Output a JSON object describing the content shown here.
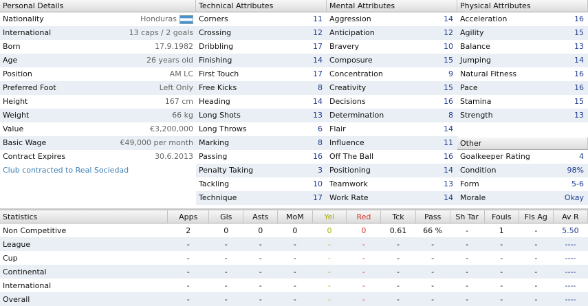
{
  "personal": {
    "title": "Personal Details",
    "rows": [
      {
        "label": "Nationality",
        "value": "Honduras"
      },
      {
        "label": "International",
        "value": "13 caps / 2 goals"
      },
      {
        "label": "Born",
        "value": "17.9.1982"
      },
      {
        "label": "Age",
        "value": "26 years old"
      },
      {
        "label": "Position",
        "value": "AM LC"
      },
      {
        "label": "Preferred Foot",
        "value": "Left Only"
      },
      {
        "label": "Height",
        "value": "167 cm"
      },
      {
        "label": "Weight",
        "value": "66 kg"
      },
      {
        "label": "Value",
        "value": "€3,200,000"
      },
      {
        "label": "Basic Wage",
        "value": "€49,000 per month"
      },
      {
        "label": "Contract Expires",
        "value": "30.6.2013"
      }
    ],
    "club_link": "Club contracted to Real Sociedad"
  },
  "technical": {
    "title": "Technical Attributes",
    "rows": [
      {
        "label": "Corners",
        "value": "11"
      },
      {
        "label": "Crossing",
        "value": "12"
      },
      {
        "label": "Dribbling",
        "value": "17"
      },
      {
        "label": "Finishing",
        "value": "14"
      },
      {
        "label": "First Touch",
        "value": "17"
      },
      {
        "label": "Free Kicks",
        "value": "8"
      },
      {
        "label": "Heading",
        "value": "14"
      },
      {
        "label": "Long Shots",
        "value": "13"
      },
      {
        "label": "Long Throws",
        "value": "6"
      },
      {
        "label": "Marking",
        "value": "8"
      },
      {
        "label": "Passing",
        "value": "16"
      },
      {
        "label": "Penalty Taking",
        "value": "3"
      },
      {
        "label": "Tackling",
        "value": "10"
      },
      {
        "label": "Technique",
        "value": "17"
      }
    ]
  },
  "mental": {
    "title": "Mental Attributes",
    "rows": [
      {
        "label": "Aggression",
        "value": "14"
      },
      {
        "label": "Anticipation",
        "value": "12"
      },
      {
        "label": "Bravery",
        "value": "10"
      },
      {
        "label": "Composure",
        "value": "15"
      },
      {
        "label": "Concentration",
        "value": "9"
      },
      {
        "label": "Creativity",
        "value": "15"
      },
      {
        "label": "Decisions",
        "value": "16"
      },
      {
        "label": "Determination",
        "value": "8"
      },
      {
        "label": "Flair",
        "value": "14"
      },
      {
        "label": "Influence",
        "value": "11"
      },
      {
        "label": "Off The Ball",
        "value": "16"
      },
      {
        "label": "Positioning",
        "value": "14"
      },
      {
        "label": "Teamwork",
        "value": "13"
      },
      {
        "label": "Work Rate",
        "value": "14"
      }
    ]
  },
  "physical": {
    "title": "Physical Attributes",
    "rows": [
      {
        "label": "Acceleration",
        "value": "16"
      },
      {
        "label": "Agility",
        "value": "15"
      },
      {
        "label": "Balance",
        "value": "13"
      },
      {
        "label": "Jumping",
        "value": "14"
      },
      {
        "label": "Natural Fitness",
        "value": "16"
      },
      {
        "label": "Pace",
        "value": "16"
      },
      {
        "label": "Stamina",
        "value": "15"
      },
      {
        "label": "Strength",
        "value": "13"
      }
    ]
  },
  "other": {
    "title": "Other",
    "rows": [
      {
        "label": "Goalkeeper Rating",
        "value": "4"
      },
      {
        "label": "Condition",
        "value": "98%"
      },
      {
        "label": "Form",
        "value": "5-6"
      },
      {
        "label": "Morale",
        "value": "Okay"
      }
    ]
  },
  "statistics": {
    "columns": [
      "Statistics",
      "Apps",
      "Gls",
      "Asts",
      "MoM",
      "Yel",
      "Red",
      "Tck",
      "Pass",
      "Sh Tar",
      "Fouls",
      "Fls Ag",
      "Av R"
    ],
    "rows": [
      [
        "Non Competitive",
        "2",
        "0",
        "0",
        "0",
        "0",
        "0",
        "0.61",
        "66 %",
        "-",
        "1",
        "-",
        "5.50"
      ],
      [
        "League",
        "-",
        "-",
        "-",
        "-",
        "-",
        "-",
        "-",
        "-",
        "-",
        "-",
        "-",
        "----"
      ],
      [
        "Cup",
        "-",
        "-",
        "-",
        "-",
        "-",
        "-",
        "-",
        "-",
        "-",
        "-",
        "-",
        "----"
      ],
      [
        "Continental",
        "-",
        "-",
        "-",
        "-",
        "-",
        "-",
        "-",
        "-",
        "-",
        "-",
        "-",
        "----"
      ],
      [
        "International",
        "-",
        "-",
        "-",
        "-",
        "-",
        "-",
        "-",
        "-",
        "-",
        "-",
        "-",
        "----"
      ],
      [
        "Overall",
        "-",
        "-",
        "-",
        "-",
        "-",
        "-",
        "-",
        "-",
        "-",
        "-",
        "-",
        "----"
      ]
    ]
  },
  "colors": {
    "link": "#3d7fb5",
    "value_blue": "#1f3c8f",
    "yel": "#a6b000",
    "red": "#d9352b",
    "row_alt": "#e9eff5"
  },
  "icons": {
    "nationality_flag": "honduras-flag-icon"
  }
}
